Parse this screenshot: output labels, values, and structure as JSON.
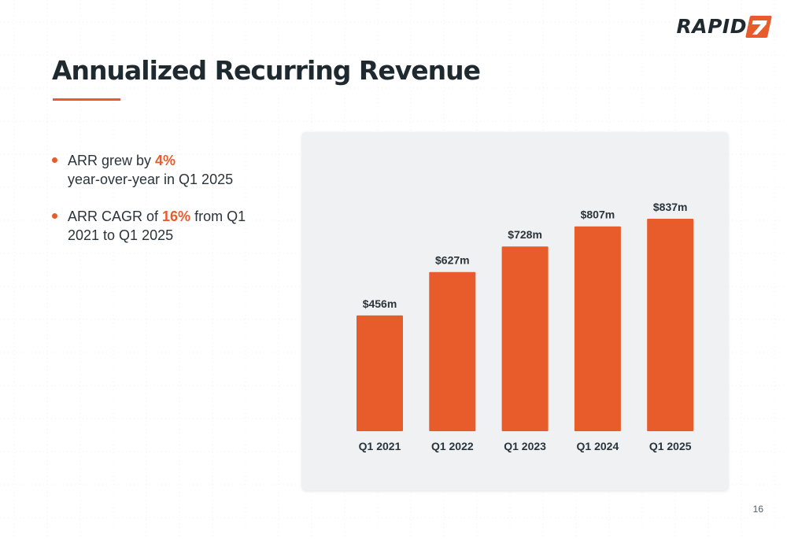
{
  "brand": {
    "logo_text": "RAPID",
    "logo_mark": "7",
    "accent_color": "#e85c2b",
    "text_color": "#1f2a30"
  },
  "slide": {
    "title": "Annualized Recurring Revenue",
    "page_number": "16"
  },
  "bullets": [
    {
      "prefix": "ARR grew by ",
      "highlight": "4%",
      "suffix": "year-over-year in Q1 2025"
    },
    {
      "prefix": "ARR CAGR of ",
      "highlight": "16%",
      "suffix": "from Q1 2021 to Q1 2025"
    }
  ],
  "chart_data": {
    "type": "bar",
    "categories": [
      "Q1 2021",
      "Q1 2022",
      "Q1 2023",
      "Q1 2024",
      "Q1 2025"
    ],
    "values": [
      456,
      627,
      728,
      807,
      837
    ],
    "data_labels": [
      "$456m",
      "$627m",
      "$728m",
      "$807m",
      "$837m"
    ],
    "unit": "$m",
    "bar_color": "#e85c2b",
    "panel_color": "#eff1f2",
    "ylim": [
      0,
      1000
    ],
    "grid": false,
    "legend": "none"
  }
}
